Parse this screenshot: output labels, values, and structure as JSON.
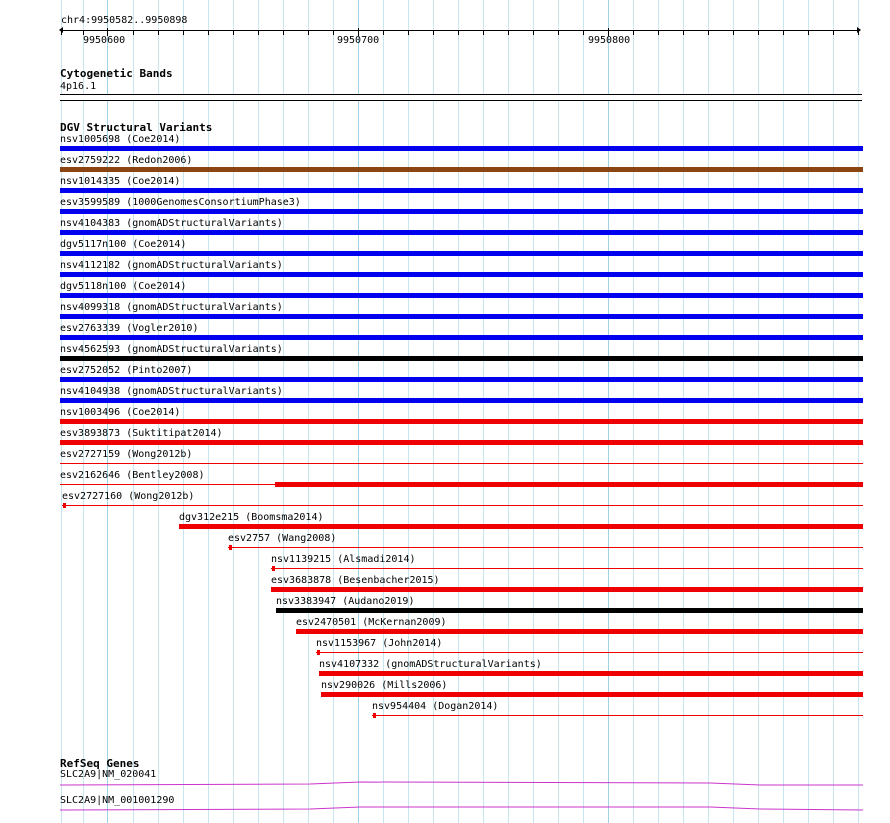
{
  "locus": "chr4:9950582..9950898",
  "ruler": {
    "labels": [
      "9950600",
      "9950700",
      "9950800"
    ]
  },
  "colors": {
    "grid_minor": "#c9e6f0",
    "grid_major": "#9fd2e6",
    "blue": "#0000ee",
    "brown": "#8b4513",
    "black": "#000000",
    "red": "#ee0000",
    "magenta": "#cc33cc"
  },
  "tracks": {
    "cytoband": {
      "title": "Cytogenetic Bands",
      "band": "4p16.1"
    },
    "dgv": {
      "title": "DGV Structural Variants",
      "variants": [
        {
          "label": "nsv1005698 (Coe2014)",
          "color": "blue"
        },
        {
          "label": "esv2759222 (Redon2006)",
          "color": "brown"
        },
        {
          "label": "nsv1014335 (Coe2014)",
          "color": "blue"
        },
        {
          "label": "esv3599589 (1000GenomesConsortiumPhase3)",
          "color": "blue"
        },
        {
          "label": "nsv4104383 (gnomADStructuralVariants)",
          "color": "blue"
        },
        {
          "label": "dgv5117n100 (Coe2014)",
          "color": "blue"
        },
        {
          "label": "nsv4112182 (gnomADStructuralVariants)",
          "color": "blue"
        },
        {
          "label": "dgv5118n100 (Coe2014)",
          "color": "blue"
        },
        {
          "label": "nsv4099318 (gnomADStructuralVariants)",
          "color": "blue"
        },
        {
          "label": "esv2763339 (Vogler2010)",
          "color": "blue"
        },
        {
          "label": "nsv4562593 (gnomADStructuralVariants)",
          "color": "black"
        },
        {
          "label": "esv2752052 (Pinto2007)",
          "color": "blue"
        },
        {
          "label": "nsv4104938 (gnomADStructuralVariants)",
          "color": "blue"
        },
        {
          "label": "nsv1003496 (Coe2014)",
          "color": "red"
        },
        {
          "label": "esv3893873 (Suktitipat2014)",
          "color": "red"
        },
        {
          "label": "esv2727159 (Wong2012b)",
          "color": "red"
        },
        {
          "label": "esv2162646 (Bentley2008)",
          "color": "red"
        },
        {
          "label": "esv2727160 (Wong2012b)",
          "color": "red"
        },
        {
          "label": "dgv312e215 (Boomsma2014)",
          "color": "red"
        },
        {
          "label": "esv2757 (Wang2008)",
          "color": "red"
        },
        {
          "label": "nsv1139215 (Alsmadi2014)",
          "color": "red"
        },
        {
          "label": "esv3683878 (Besenbacher2015)",
          "color": "red"
        },
        {
          "label": "nsv3383947 (Audano2019)",
          "color": "black"
        },
        {
          "label": "esv2470501 (McKernan2009)",
          "color": "red"
        },
        {
          "label": "nsv1153967 (John2014)",
          "color": "red"
        },
        {
          "label": "nsv4107332 (gnomADStructuralVariants)",
          "color": "red"
        },
        {
          "label": "nsv290026 (Mills2006)",
          "color": "red"
        },
        {
          "label": "nsv954404 (Dogan2014)",
          "color": "red"
        }
      ]
    },
    "refseq": {
      "title": "RefSeq Genes",
      "genes": [
        {
          "label": "SLC2A9|NM_020041"
        },
        {
          "label": "SLC2A9|NM_001001290"
        }
      ]
    }
  }
}
